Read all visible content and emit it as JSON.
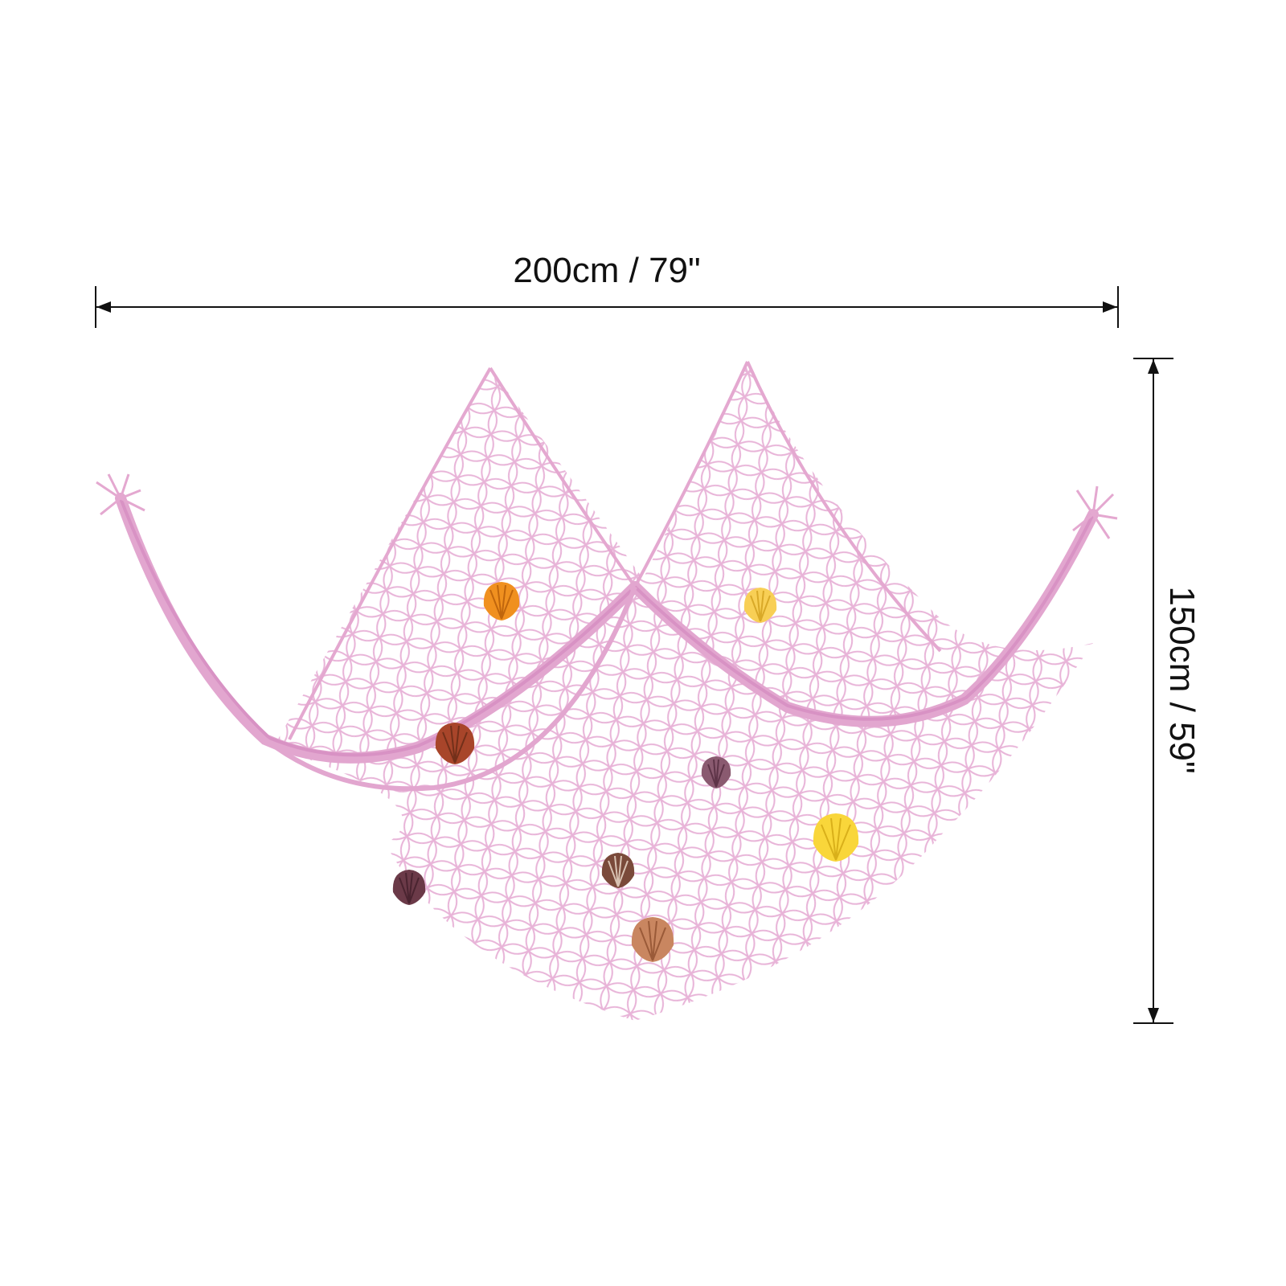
{
  "dimensions": {
    "width_label": "200cm / 79\"",
    "height_label": "150cm / 59\""
  },
  "colors": {
    "net": "#e8b4d8",
    "net_dark": "#d892c4",
    "dimension_line": "#111111"
  },
  "shells": [
    {
      "name": "orange-shell",
      "color": "#f0901f"
    },
    {
      "name": "yellow-shell-small",
      "color": "#f8cf55"
    },
    {
      "name": "brown-shell",
      "color": "#a8452a"
    },
    {
      "name": "purple-shell-small",
      "color": "#8a5a70"
    },
    {
      "name": "yellow-shell-large",
      "color": "#f9d63a"
    },
    {
      "name": "spotted-shell",
      "color": "#7a4a3a"
    },
    {
      "name": "purple-shell",
      "color": "#6b3a48"
    },
    {
      "name": "peach-shell",
      "color": "#c98660"
    }
  ]
}
